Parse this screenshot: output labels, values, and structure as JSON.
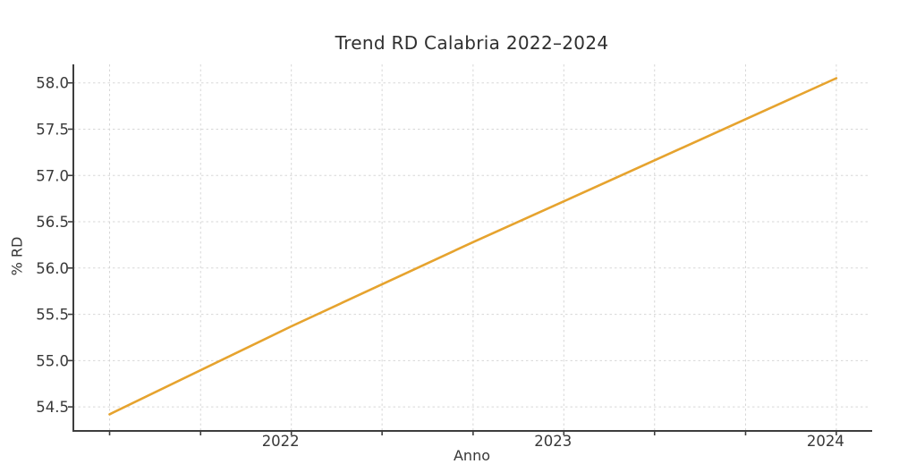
{
  "chart_data": {
    "type": "line",
    "title": "Trend RD Calabria 2022–2024",
    "xlabel": "Anno",
    "ylabel": "% RD",
    "series": [
      {
        "x": [
          2021.333,
          2022.0,
          2022.667,
          2023.0,
          2024.0
        ],
        "y": [
          54.42,
          55.37,
          56.28,
          56.72,
          58.05
        ],
        "color": "#e6a32e"
      }
    ],
    "xlim": [
      2021.2,
      2024.125
    ],
    "ylim": [
      54.25,
      58.2
    ],
    "x_ticks": [
      {
        "value": 2021.333,
        "label": ""
      },
      {
        "value": 2021.667,
        "label": ""
      },
      {
        "value": 2022.0,
        "label": "2022"
      },
      {
        "value": 2022.333,
        "label": ""
      },
      {
        "value": 2022.667,
        "label": ""
      },
      {
        "value": 2023.0,
        "label": "2023"
      },
      {
        "value": 2023.333,
        "label": ""
      },
      {
        "value": 2023.667,
        "label": ""
      },
      {
        "value": 2024.0,
        "label": "2024"
      }
    ],
    "y_ticks": [
      {
        "value": 54.5,
        "label": "54.5"
      },
      {
        "value": 55.0,
        "label": "55.0"
      },
      {
        "value": 55.5,
        "label": "55.5"
      },
      {
        "value": 56.0,
        "label": "56.0"
      },
      {
        "value": 56.5,
        "label": "56.5"
      },
      {
        "value": 57.0,
        "label": "57.0"
      },
      {
        "value": 57.5,
        "label": "57.5"
      },
      {
        "value": 58.0,
        "label": "58.0"
      }
    ],
    "grid": true,
    "legend": false,
    "colors": {
      "grid": "#d7d7d7",
      "axis": "#3d3d3d",
      "tick_text": "#383838",
      "background": "#ffffff"
    }
  }
}
